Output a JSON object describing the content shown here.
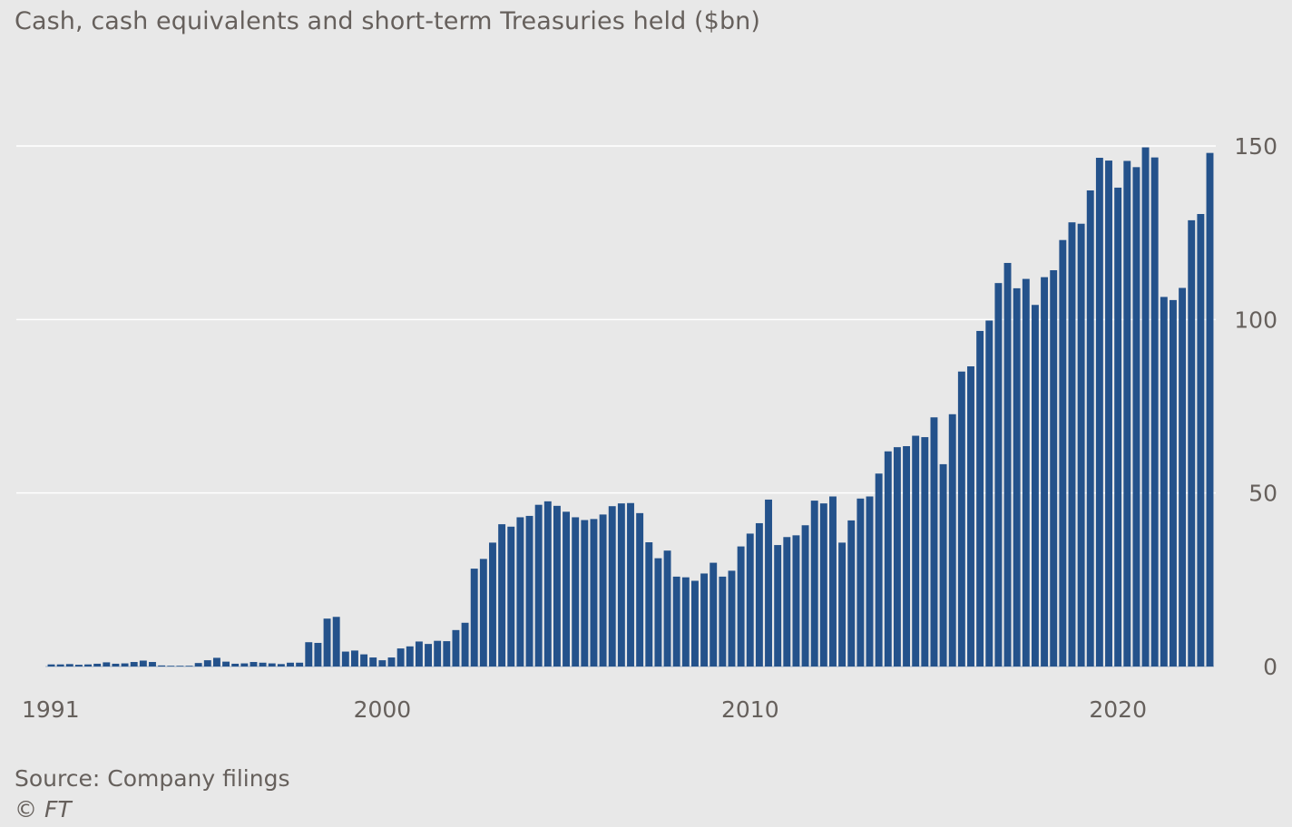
{
  "title": "Cash, cash equivalents and short-term Treasuries held ($bn)",
  "source": "Source: Company filings",
  "credit": "© FT",
  "colors": {
    "bar": "#24528b",
    "background": "#e8e8e8",
    "gridline": "#ffffff",
    "text": "#66605c"
  },
  "chart_data": {
    "type": "bar",
    "title": "Cash, cash equivalents and short-term Treasuries held ($bn)",
    "xlabel": "",
    "ylabel": "",
    "x_unit": "quarterly, by year",
    "x_start_year": 1991,
    "ylim": [
      0,
      150
    ],
    "yticks": [
      0,
      50,
      100,
      150
    ],
    "ytick_position": "right",
    "xticks": [
      "1991",
      "2000",
      "2010",
      "2020"
    ],
    "grid": true,
    "legend": "none",
    "series": [
      {
        "values": [
          0.6,
          0.6,
          0.7,
          0.5,
          0.6,
          0.8,
          1.2,
          0.8,
          0.9,
          1.3,
          1.7,
          1.3,
          0.3,
          0.2,
          0.2,
          0.1,
          1.0,
          1.8,
          2.5,
          1.4,
          0.8,
          0.9,
          1.3,
          1.1,
          0.9,
          0.7,
          1.1,
          1.1,
          7.0,
          6.8,
          13.8,
          14.3,
          4.3,
          4.6,
          3.5,
          2.6,
          1.8,
          2.6,
          5.2,
          5.8,
          7.2,
          6.5,
          7.4,
          7.3,
          10.5,
          12.6,
          28.2,
          31.0,
          35.7,
          41.0,
          40.3,
          43.0,
          43.4,
          46.6,
          47.6,
          46.3,
          44.6,
          43.0,
          42.2,
          42.5,
          43.8,
          46.2,
          47.0,
          47.1,
          44.2,
          35.8,
          31.2,
          33.4,
          25.9,
          25.7,
          24.7,
          26.8,
          29.9,
          25.9,
          27.6,
          34.6,
          38.3,
          41.3,
          48.1,
          35.0,
          37.3,
          37.8,
          40.7,
          47.8,
          47.0,
          49.0,
          35.7,
          42.1,
          48.4,
          49.0,
          55.6,
          62.0,
          63.2,
          63.5,
          66.5,
          66.1,
          71.8,
          58.3,
          72.7,
          85.0,
          86.5,
          96.7,
          99.7,
          110.5,
          116.3,
          109.0,
          111.7,
          104.2,
          112.2,
          114.2,
          122.9,
          128.0,
          127.6,
          137.2,
          146.6,
          145.8,
          138.0,
          145.7,
          143.9,
          149.6,
          146.7,
          106.5,
          105.6,
          109.1,
          128.6,
          130.4,
          148.0
        ]
      }
    ]
  }
}
